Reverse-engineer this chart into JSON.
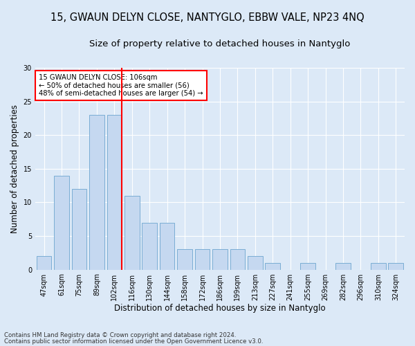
{
  "title": "15, GWAUN DELYN CLOSE, NANTYGLO, EBBW VALE, NP23 4NQ",
  "subtitle": "Size of property relative to detached houses in Nantyglo",
  "xlabel": "Distribution of detached houses by size in Nantyglo",
  "ylabel": "Number of detached properties",
  "categories": [
    "47sqm",
    "61sqm",
    "75sqm",
    "89sqm",
    "102sqm",
    "116sqm",
    "130sqm",
    "144sqm",
    "158sqm",
    "172sqm",
    "186sqm",
    "199sqm",
    "213sqm",
    "227sqm",
    "241sqm",
    "255sqm",
    "269sqm",
    "282sqm",
    "296sqm",
    "310sqm",
    "324sqm"
  ],
  "values": [
    2,
    14,
    12,
    23,
    23,
    11,
    7,
    7,
    3,
    3,
    3,
    3,
    2,
    1,
    0,
    1,
    0,
    1,
    0,
    1,
    1
  ],
  "bar_color": "#c5d8f0",
  "bar_edge_color": "#7aadd4",
  "vline_index": 4,
  "vline_color": "red",
  "annotation_text": "15 GWAUN DELYN CLOSE: 106sqm\n← 50% of detached houses are smaller (56)\n48% of semi-detached houses are larger (54) →",
  "annotation_box_color": "white",
  "annotation_box_edge": "red",
  "ylim": [
    0,
    30
  ],
  "yticks": [
    0,
    5,
    10,
    15,
    20,
    25,
    30
  ],
  "footer1": "Contains HM Land Registry data © Crown copyright and database right 2024.",
  "footer2": "Contains public sector information licensed under the Open Government Licence v3.0.",
  "bg_color": "#dce9f7",
  "plot_bg_color": "#dce9f7",
  "title_fontsize": 10.5,
  "subtitle_fontsize": 9.5,
  "tick_fontsize": 7,
  "ylabel_fontsize": 8.5,
  "xlabel_fontsize": 8.5,
  "footer_fontsize": 6.2
}
